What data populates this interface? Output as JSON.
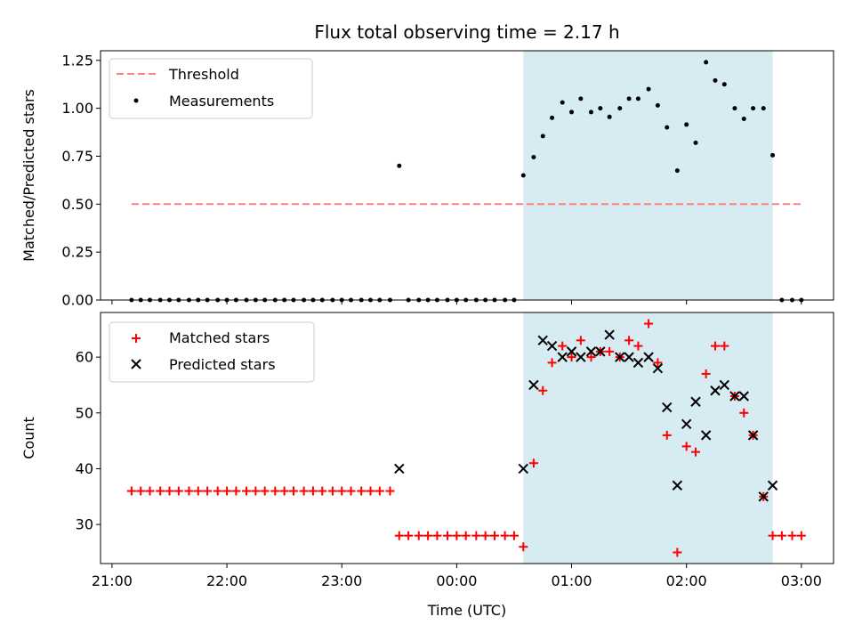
{
  "title": "Flux total observing time = 2.17 h",
  "colors": {
    "threshold": "#ff7f7f",
    "measurement": "#000000",
    "matched": "#ff0000",
    "predicted": "#000000",
    "shade": "#add8e6"
  },
  "chart_data": [
    {
      "type": "scatter",
      "ylabel": "Matched/Predicted stars",
      "xlabel": "",
      "ylim": [
        0,
        1.3
      ],
      "xlim": [
        -3.1,
        3.28
      ],
      "y_ticks": [
        0,
        0.25,
        0.5,
        0.75,
        1.0,
        1.25
      ],
      "y_tick_labels": [
        "0.00",
        "0.25",
        "0.50",
        "0.75",
        "1.00",
        "1.25"
      ],
      "shaded_interval": [
        0.58,
        2.75
      ],
      "legend_position": "upper-left",
      "threshold": {
        "name": "Threshold",
        "y": 0.5,
        "x_range": [
          -2.83,
          3.0
        ],
        "style": "dashed"
      },
      "series": [
        {
          "name": "Measurements",
          "marker": "dot",
          "x": [
            -2.83,
            -2.75,
            -2.67,
            -2.58,
            -2.5,
            -2.42,
            -2.33,
            -2.25,
            -2.17,
            -2.08,
            -2.0,
            -1.92,
            -1.83,
            -1.75,
            -1.67,
            -1.58,
            -1.5,
            -1.42,
            -1.33,
            -1.25,
            -1.17,
            -1.08,
            -1.0,
            -0.92,
            -0.83,
            -0.75,
            -0.67,
            -0.58,
            -0.5,
            -0.42,
            -0.33,
            -0.25,
            -0.17,
            -0.08,
            0.0,
            0.08,
            0.17,
            0.25,
            0.33,
            0.42,
            0.5,
            0.58,
            0.67,
            0.75,
            0.83,
            0.92,
            1.0,
            1.08,
            1.17,
            1.25,
            1.33,
            1.42,
            1.5,
            1.58,
            1.67,
            1.75,
            1.83,
            1.92,
            2.0,
            2.08,
            2.17,
            2.25,
            2.33,
            2.42,
            2.5,
            2.58,
            2.67,
            2.75,
            2.83,
            2.92,
            3.0
          ],
          "y": [
            0,
            0,
            0,
            0,
            0,
            0,
            0,
            0,
            0,
            0,
            0,
            0,
            0,
            0,
            0,
            0,
            0,
            0,
            0,
            0,
            0,
            0,
            0,
            0,
            0,
            0,
            0,
            0,
            0.7,
            0,
            0,
            0,
            0,
            0,
            0,
            0,
            0,
            0,
            0,
            0,
            0,
            0.65,
            0.745,
            0.855,
            0.95,
            1.03,
            0.98,
            1.05,
            0.98,
            1.0,
            0.955,
            1.0,
            1.05,
            1.05,
            1.1,
            1.015,
            0.9,
            0.675,
            0.915,
            0.82,
            1.24,
            1.145,
            1.125,
            1.0,
            0.945,
            1.0,
            1.0,
            0.755,
            0,
            0,
            0
          ]
        }
      ]
    },
    {
      "type": "scatter",
      "ylabel": "Count",
      "xlabel": "Time (UTC)",
      "ylim": [
        23,
        68
      ],
      "xlim": [
        -3.1,
        3.28
      ],
      "y_ticks": [
        30,
        40,
        50,
        60
      ],
      "y_tick_labels": [
        "30",
        "40",
        "50",
        "60"
      ],
      "x_ticks": [
        -3,
        -2,
        -1,
        0,
        1,
        2,
        3
      ],
      "x_tick_labels": [
        "21:00",
        "22:00",
        "23:00",
        "00:00",
        "01:00",
        "02:00",
        "03:00"
      ],
      "shaded_interval": [
        0.58,
        2.75
      ],
      "legend_position": "upper-left",
      "series": [
        {
          "name": "Matched stars",
          "marker": "plus",
          "x": [
            -2.83,
            -2.75,
            -2.67,
            -2.58,
            -2.5,
            -2.42,
            -2.33,
            -2.25,
            -2.17,
            -2.08,
            -2.0,
            -1.92,
            -1.83,
            -1.75,
            -1.67,
            -1.58,
            -1.5,
            -1.42,
            -1.33,
            -1.25,
            -1.17,
            -1.08,
            -1.0,
            -0.92,
            -0.83,
            -0.75,
            -0.67,
            -0.58,
            -0.5,
            -0.42,
            -0.33,
            -0.25,
            -0.17,
            -0.08,
            0.0,
            0.08,
            0.17,
            0.25,
            0.33,
            0.42,
            0.5,
            0.58,
            0.67,
            0.75,
            0.83,
            0.92,
            1.0,
            1.08,
            1.17,
            1.25,
            1.33,
            1.42,
            1.5,
            1.58,
            1.67,
            1.75,
            1.83,
            1.92,
            2.0,
            2.08,
            2.17,
            2.25,
            2.33,
            2.42,
            2.5,
            2.58,
            2.67,
            2.75,
            2.83,
            2.92,
            3.0
          ],
          "y": [
            36,
            36,
            36,
            36,
            36,
            36,
            36,
            36,
            36,
            36,
            36,
            36,
            36,
            36,
            36,
            36,
            36,
            36,
            36,
            36,
            36,
            36,
            36,
            36,
            36,
            36,
            36,
            36,
            28,
            28,
            28,
            28,
            28,
            28,
            28,
            28,
            28,
            28,
            28,
            28,
            28,
            26,
            41,
            54,
            59,
            62,
            60,
            63,
            60,
            61,
            61,
            60,
            63,
            62,
            66,
            59,
            46,
            25,
            44,
            43,
            57,
            62,
            62,
            53,
            50,
            46,
            35,
            28,
            28,
            28,
            28
          ]
        },
        {
          "name": "Predicted stars",
          "marker": "x",
          "x": [
            -0.5,
            0.58,
            0.67,
            0.75,
            0.83,
            0.92,
            1.0,
            1.08,
            1.17,
            1.25,
            1.33,
            1.42,
            1.5,
            1.58,
            1.67,
            1.75,
            1.83,
            1.92,
            2.0,
            2.08,
            2.17,
            2.25,
            2.33,
            2.42,
            2.5,
            2.58,
            2.67,
            2.75
          ],
          "y": [
            40,
            40,
            55,
            63,
            62,
            60,
            61,
            60,
            61,
            61,
            64,
            60,
            60,
            59,
            60,
            58,
            51,
            37,
            48,
            52,
            46,
            54,
            55,
            53,
            53,
            46,
            35,
            37
          ]
        }
      ]
    }
  ]
}
